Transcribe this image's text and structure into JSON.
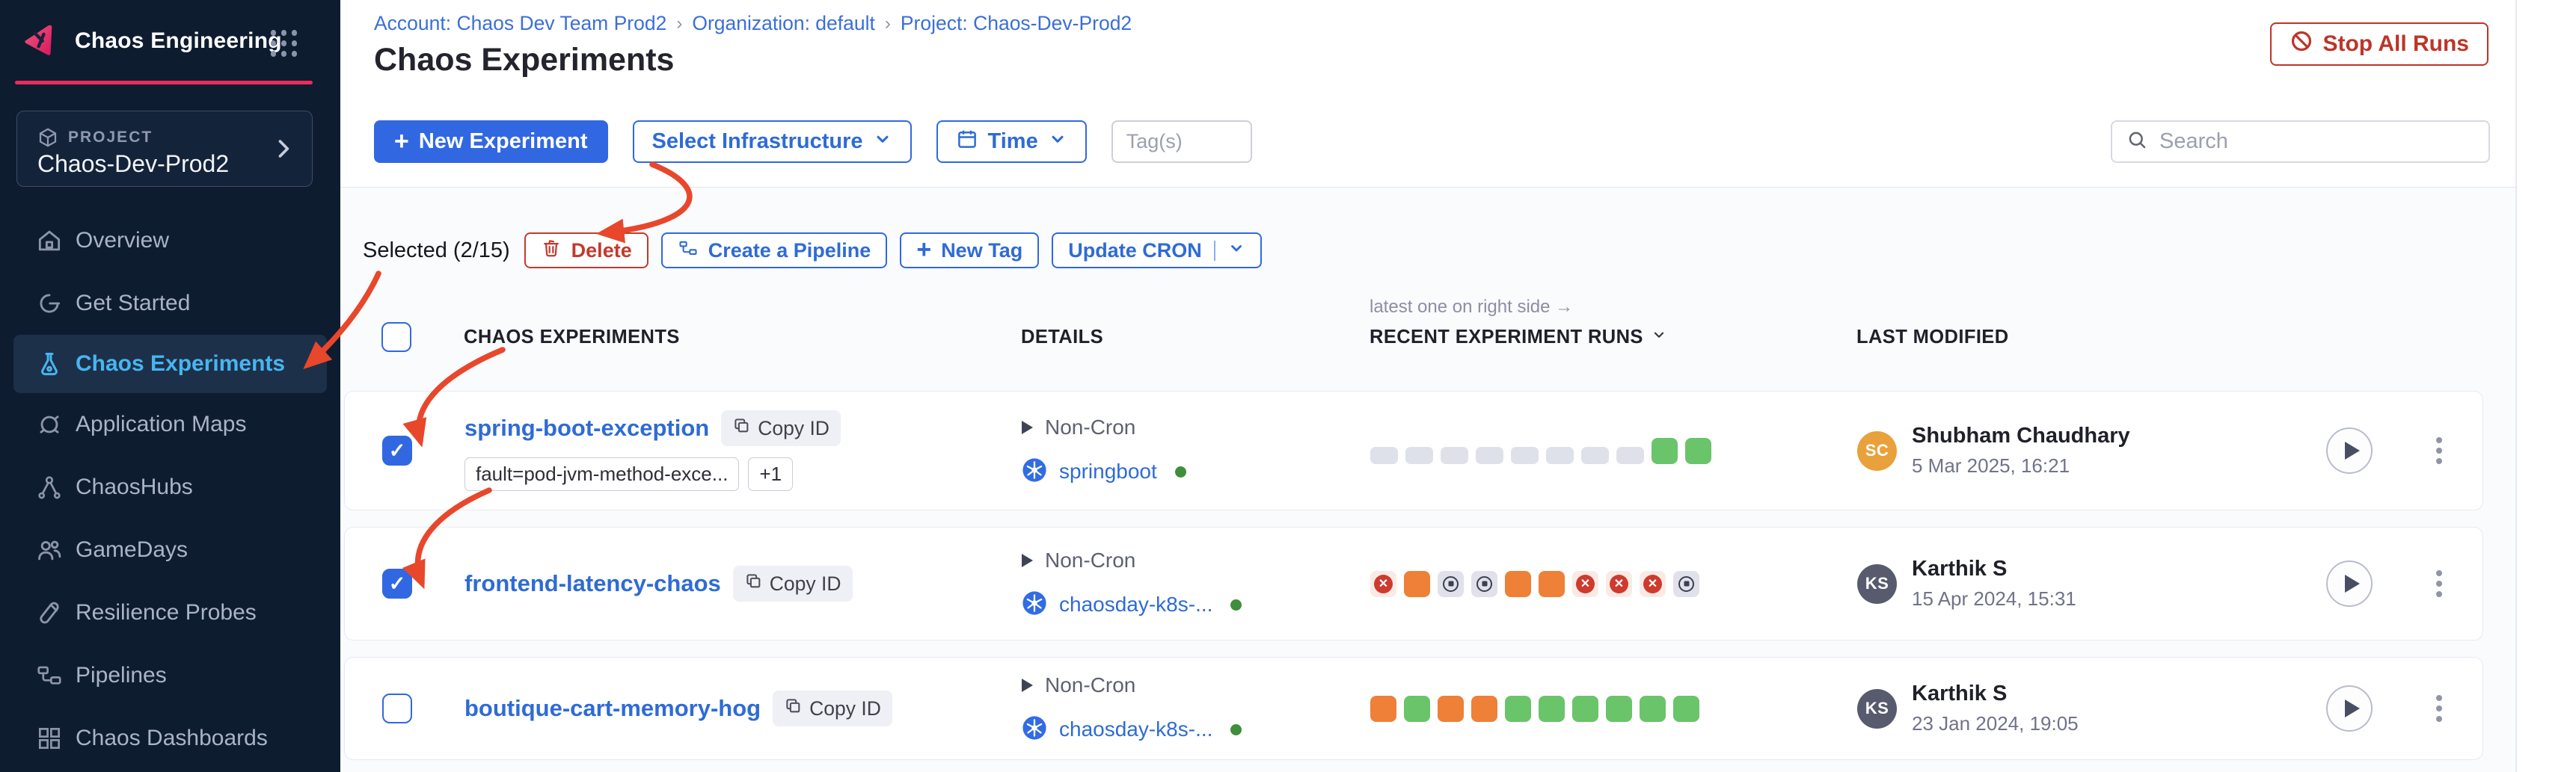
{
  "app": {
    "name": "Chaos Engineering"
  },
  "sidebar": {
    "project_label": "PROJECT",
    "project_name": "Chaos-Dev-Prod2",
    "items": [
      {
        "label": "Overview",
        "active": false
      },
      {
        "label": "Get Started",
        "active": false
      },
      {
        "label": "Chaos Experiments",
        "active": true
      },
      {
        "label": "Application Maps",
        "active": false
      },
      {
        "label": "ChaosHubs",
        "active": false
      },
      {
        "label": "GameDays",
        "active": false
      },
      {
        "label": "Resilience Probes",
        "active": false
      },
      {
        "label": "Pipelines",
        "active": false
      },
      {
        "label": "Chaos Dashboards",
        "active": false
      }
    ]
  },
  "breadcrumb": {
    "account": "Account: Chaos Dev Team Prod2",
    "org": "Organization: default",
    "project": "Project: Chaos-Dev-Prod2",
    "separator": "›"
  },
  "page": {
    "title": "Chaos Experiments"
  },
  "actions": {
    "stop_all": "Stop All Runs"
  },
  "toolbar": {
    "new_experiment": "New Experiment",
    "select_infrastructure": "Select Infrastructure",
    "time": "Time",
    "tags_placeholder": "Tag(s)",
    "search_placeholder": "Search"
  },
  "selection": {
    "label": "Selected (2/15)",
    "delete": "Delete",
    "create_pipeline": "Create a Pipeline",
    "new_tag": "New Tag",
    "update_cron": "Update CRON"
  },
  "table": {
    "runs_note": "latest one on right side →",
    "headers": {
      "experiments": "CHAOS EXPERIMENTS",
      "details": "DETAILS",
      "runs": "RECENT EXPERIMENT RUNS",
      "modified": "LAST MODIFIED"
    }
  },
  "rows": [
    {
      "name": "spring-boot-exception",
      "checked": true,
      "copy_label": "Copy ID",
      "tags": [
        "fault=pod-jvm-method-exce...",
        "+1"
      ],
      "cron": "Non-Cron",
      "infra": "springboot",
      "runs": [
        "empty",
        "empty",
        "empty",
        "empty",
        "empty",
        "empty",
        "empty",
        "empty",
        "passed",
        "passed"
      ],
      "modified": {
        "initials": "SC",
        "avatar_color": "#E9A13B",
        "name": "Shubham Chaudhary",
        "date": "5 Mar 2025, 16:21"
      }
    },
    {
      "name": "frontend-latency-chaos",
      "checked": true,
      "copy_label": "Copy ID",
      "tags": [],
      "cron": "Non-Cron",
      "infra": "chaosday-k8s-...",
      "runs": [
        "failed",
        "aborted",
        "stopped",
        "stopped",
        "aborted",
        "aborted",
        "failed",
        "failed",
        "failed",
        "stopped"
      ],
      "modified": {
        "initials": "KS",
        "avatar_color": "#575B6D",
        "name": "Karthik S",
        "date": "15 Apr 2024, 15:31"
      }
    },
    {
      "name": "boutique-cart-memory-hog",
      "checked": false,
      "copy_label": "Copy ID",
      "tags": [],
      "cron": "Non-Cron",
      "infra": "chaosday-k8s-...",
      "runs": [
        "aborted",
        "passed",
        "aborted",
        "aborted",
        "passed",
        "passed",
        "passed",
        "passed",
        "passed",
        "passed"
      ],
      "modified": {
        "initials": "KS",
        "avatar_color": "#575B6D",
        "name": "Karthik S",
        "date": "23 Jan 2024, 19:05"
      }
    }
  ],
  "colors": {
    "primary": "#3168E2",
    "link": "#2E6BD6",
    "danger": "#BC3529",
    "accent_pink": "#EE2A5E",
    "sidebar_active_text": "#47B5F0",
    "run_passed": "#6AC46A",
    "run_aborted": "#EE8037",
    "run_failed": "#CE3B2E",
    "run_empty": "#DFE1EA",
    "annotation": "#E8472B"
  }
}
